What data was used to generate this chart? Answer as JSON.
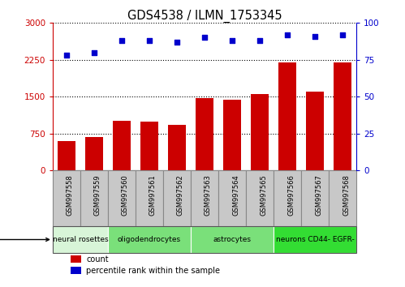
{
  "title": "GDS4538 / ILMN_1753345",
  "samples": [
    "GSM997558",
    "GSM997559",
    "GSM997560",
    "GSM997561",
    "GSM997562",
    "GSM997563",
    "GSM997564",
    "GSM997565",
    "GSM997566",
    "GSM997567",
    "GSM997568"
  ],
  "counts": [
    590,
    680,
    1000,
    990,
    930,
    1470,
    1430,
    1560,
    2190,
    1600,
    2190
  ],
  "percentile_ranks": [
    78,
    80,
    88,
    88,
    87,
    90,
    88,
    88,
    92,
    91,
    92
  ],
  "ylim_left": [
    0,
    3000
  ],
  "ylim_right": [
    0,
    100
  ],
  "yticks_left": [
    0,
    750,
    1500,
    2250,
    3000
  ],
  "yticks_right": [
    0,
    25,
    50,
    75,
    100
  ],
  "bar_color": "#cc0000",
  "dot_color": "#0000cc",
  "cell_types": [
    {
      "label": "neural rosettes",
      "start": 0,
      "end": 2,
      "color": "#d8f5d8"
    },
    {
      "label": "oligodendrocytes",
      "start": 2,
      "end": 5,
      "color": "#7ae07a"
    },
    {
      "label": "astrocytes",
      "start": 5,
      "end": 8,
      "color": "#7ae07a"
    },
    {
      "label": "neurons CD44- EGFR-",
      "start": 8,
      "end": 11,
      "color": "#33dd33"
    }
  ],
  "tick_bg": "#c8c8c8",
  "tick_border": "#888888",
  "plot_bg": "#ffffff",
  "grid_color": "#000000",
  "legend_count_color": "#cc0000",
  "legend_dot_color": "#0000cc"
}
